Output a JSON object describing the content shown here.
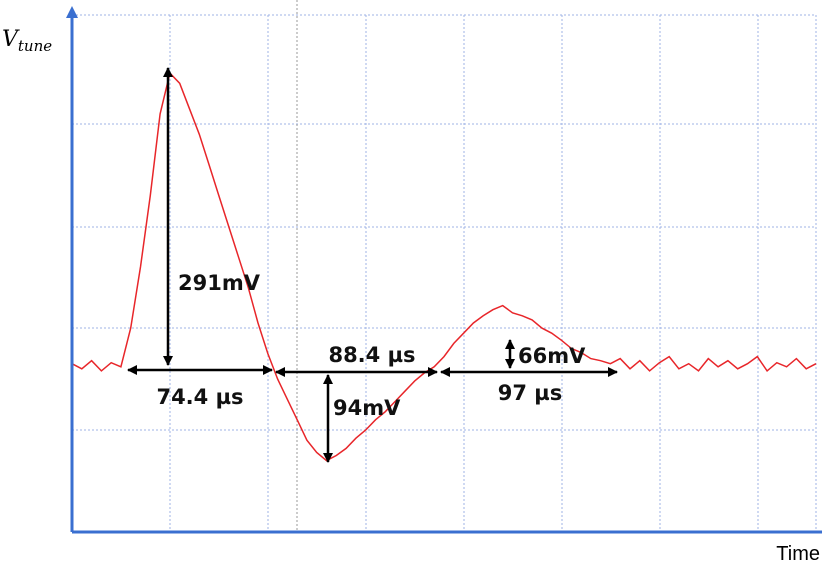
{
  "chart_data": {
    "type": "line",
    "ylabel": "V",
    "ylabel_sub": "tune",
    "xlabel": "Time",
    "color": "#e8262a",
    "xlim": [
      0,
      380
    ],
    "ylim": [
      0,
      507
    ],
    "x": [
      0,
      5,
      10,
      15,
      20,
      25,
      30,
      35,
      40,
      45,
      50,
      55,
      60,
      65,
      70,
      75,
      80,
      85,
      90,
      95,
      100,
      105,
      110,
      115,
      120,
      125,
      130,
      135,
      140,
      145,
      150,
      155,
      160,
      165,
      170,
      175,
      180,
      185,
      190,
      195,
      200,
      205,
      210,
      215,
      220,
      225,
      230,
      235,
      240,
      245,
      250,
      255,
      260,
      265,
      270,
      275,
      280,
      285,
      290,
      295,
      300,
      305,
      310,
      315,
      320,
      325,
      330,
      335,
      340,
      345,
      350,
      355,
      360,
      365,
      370,
      375,
      380
    ],
    "values": [
      165,
      160,
      168,
      158,
      166,
      162,
      200,
      260,
      330,
      410,
      450,
      440,
      415,
      390,
      360,
      330,
      300,
      270,
      240,
      205,
      175,
      150,
      130,
      110,
      90,
      78,
      70,
      75,
      82,
      92,
      100,
      110,
      118,
      128,
      138,
      148,
      156,
      162,
      172,
      185,
      195,
      205,
      212,
      218,
      222,
      215,
      212,
      208,
      200,
      195,
      188,
      180,
      176,
      170,
      168,
      165,
      170,
      160,
      168,
      158,
      166,
      172,
      160,
      165,
      158,
      170,
      162,
      168,
      160,
      165,
      172,
      158,
      166,
      162,
      170,
      160,
      165
    ],
    "annotations": [
      "291mV",
      "74.4 µs",
      "88.4 µs",
      "94mV",
      "97 µs",
      "66mV"
    ]
  }
}
